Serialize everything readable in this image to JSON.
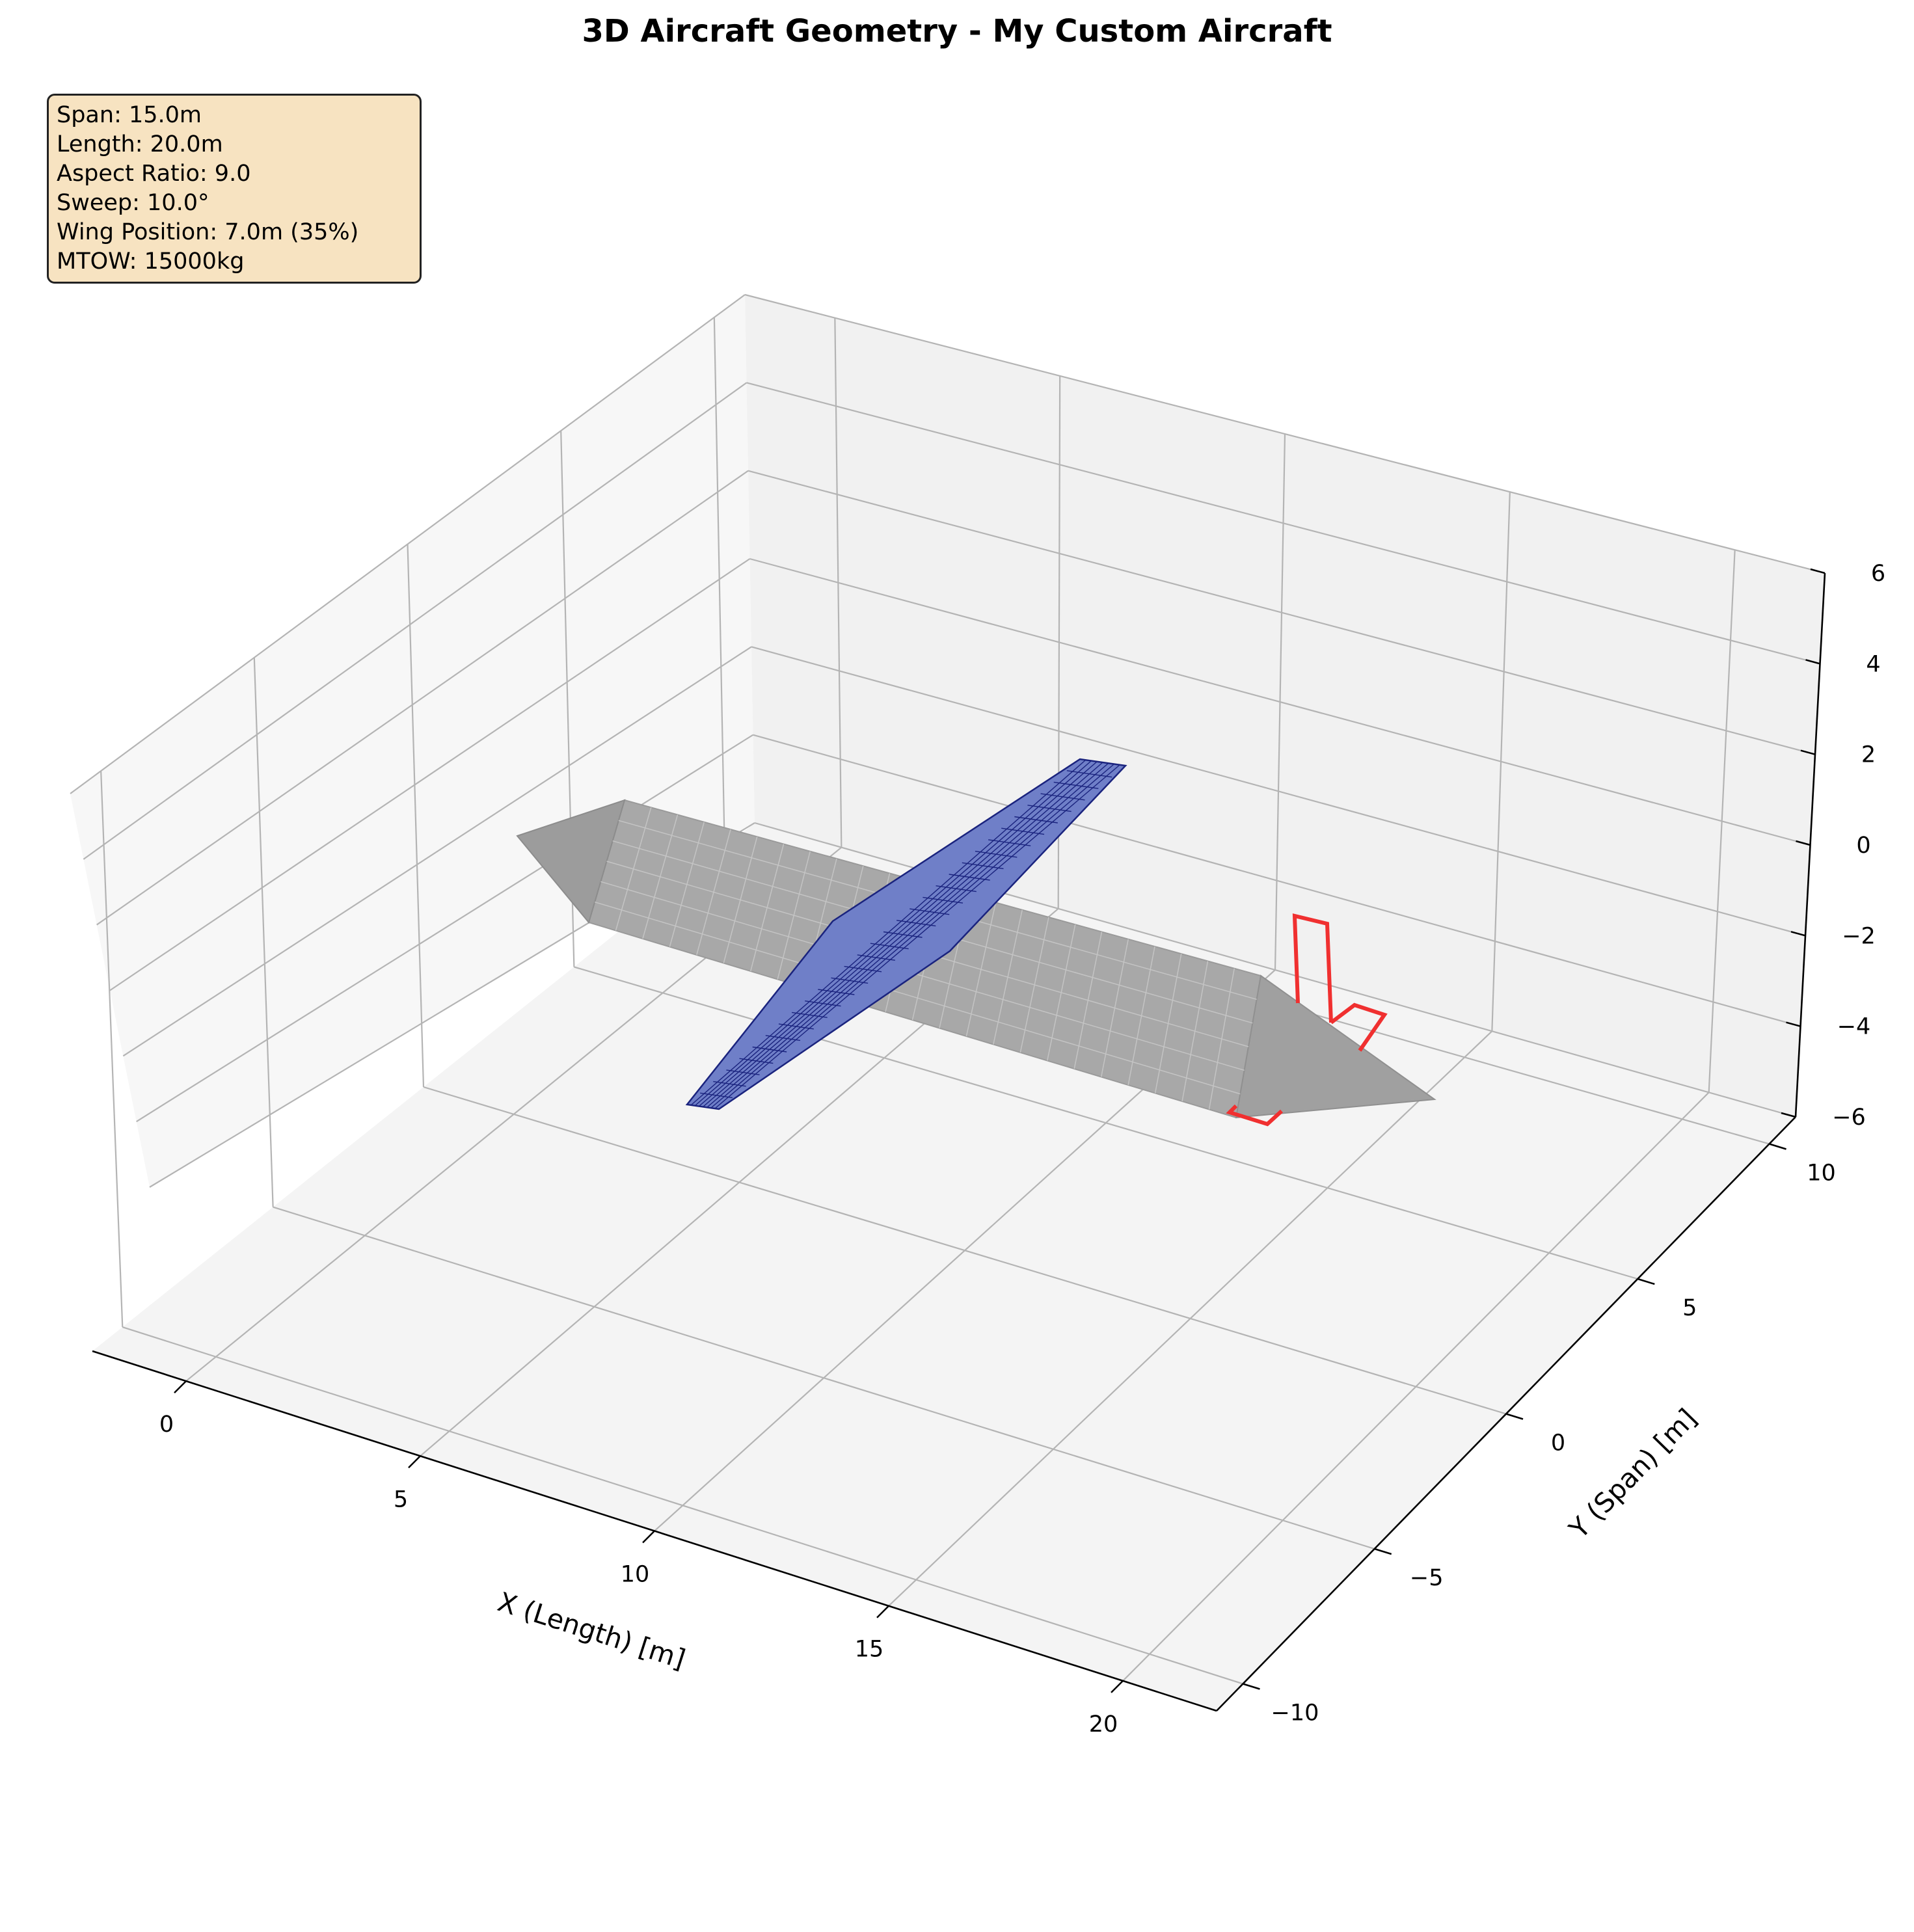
{
  "chart_data": {
    "type": "3d-surface",
    "title": "3D Aircraft Geometry - My Custom Aircraft",
    "xlabel": "X (Length) [m]",
    "ylabel": "Y (Span) [m]",
    "zlabel": "",
    "xlim": [
      -2,
      22
    ],
    "ylim": [
      -11,
      11
    ],
    "zlim": [
      -6,
      6
    ],
    "xticks": [
      "0",
      "5",
      "10",
      "15",
      "20"
    ],
    "yticks": [
      "−10",
      "−5",
      "0",
      "5",
      "10"
    ],
    "zticks": [
      "−6",
      "−4",
      "−2",
      "0",
      "2",
      "4",
      "6"
    ],
    "grid": true,
    "info_lines": [
      "Span: 15.0m",
      "Length: 20.0m",
      "Aspect Ratio: 9.0",
      "Sweep: 10.0°",
      "Wing Position: 7.0m (35%)",
      "MTOW: 15000kg"
    ],
    "parameters": {
      "span_m": 15.0,
      "length_m": 20.0,
      "aspect_ratio": 9.0,
      "sweep_deg": 10.0,
      "wing_position_m": 7.0,
      "wing_position_pct": 35,
      "mtow_kg": 15000
    },
    "series": [
      {
        "component": "fuselage",
        "color": "#a8a8a8"
      },
      {
        "component": "wing",
        "color": "#1a237e"
      },
      {
        "component": "tail",
        "color": "#f03030"
      }
    ]
  }
}
